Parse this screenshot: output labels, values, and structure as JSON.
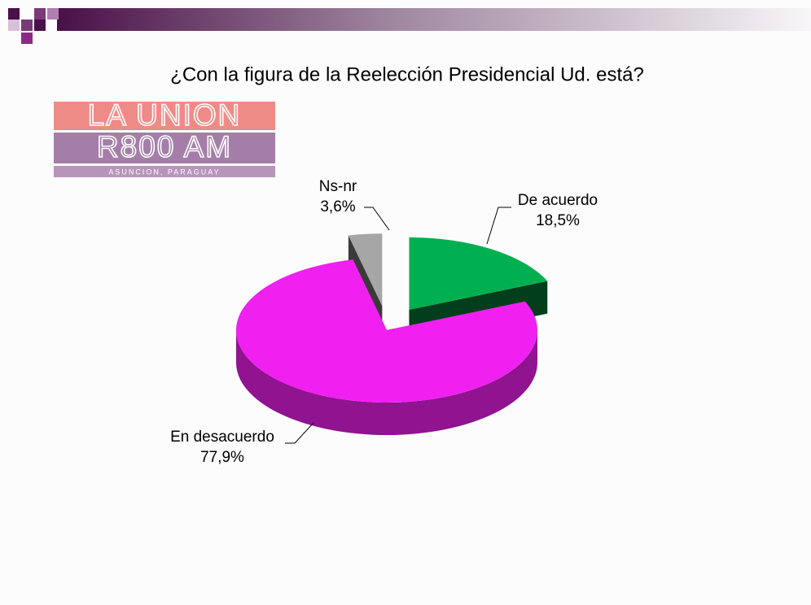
{
  "logo": {
    "line1": "LA UNION",
    "line2": "R800 AM",
    "line3": "ASUNCION, PARAGUAY"
  },
  "chart_data": {
    "type": "pie",
    "title": "¿Con la figura de la Reelección Presidencial Ud. está?",
    "categories": [
      "De acuerdo",
      "En desacuerdo",
      "Ns-nr"
    ],
    "values": [
      18.5,
      77.9,
      3.6
    ],
    "value_labels": [
      "18,5%",
      "77,9%",
      "3,6%"
    ],
    "colors": [
      "#00b050",
      "#f020f0",
      "#a6a6a6"
    ]
  }
}
